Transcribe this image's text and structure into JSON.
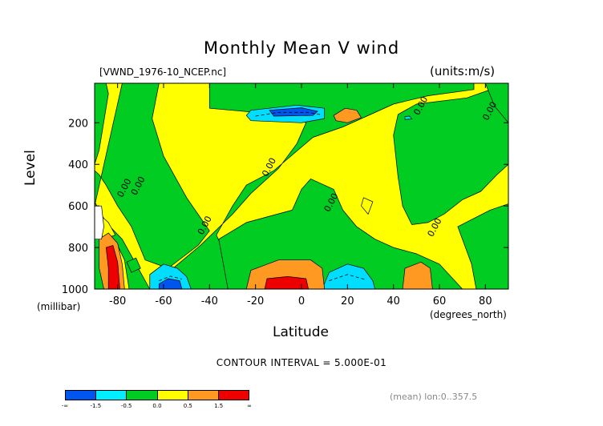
{
  "chart_data": {
    "type": "heatmap",
    "title": "Monthly Mean V wind",
    "file_label": "[VWND_1976-10_NCEP.nc]",
    "units_label": "(units:m/s)",
    "xlabel": "Latitude",
    "x_unit_label": "(degrees_north)",
    "ylabel": "Level",
    "y_unit_label": "(millibar)",
    "xlim": [
      -90,
      90
    ],
    "ylim": [
      1000,
      10
    ],
    "x_ticks": [
      -80,
      -60,
      -40,
      -20,
      0,
      20,
      40,
      60,
      80
    ],
    "x_tick_labels": [
      "-80",
      "-60",
      "-40",
      "-20",
      "0",
      "20",
      "40",
      "60",
      "80"
    ],
    "y_ticks": [
      200,
      400,
      600,
      800,
      1000
    ],
    "y_tick_labels": [
      "200",
      "400",
      "600",
      "800",
      "1000"
    ],
    "contour_interval_label": "CONTOUR INTERVAL = 5.000E-01",
    "mean_label": "(mean) lon:0..357.5",
    "contour_labels": [
      {
        "text": "0.00",
        "lat": -76,
        "level": 520
      },
      {
        "text": "0.00",
        "lat": -70,
        "level": 510
      },
      {
        "text": "0.00",
        "lat": -41,
        "level": 700
      },
      {
        "text": "0.00",
        "lat": -13,
        "level": 420
      },
      {
        "text": "0.00",
        "lat": 14,
        "level": 590
      },
      {
        "text": "0.00",
        "lat": 59,
        "level": 710
      },
      {
        "text": "0.00",
        "lat": 53,
        "level": 125
      },
      {
        "text": "0.00",
        "lat": 83,
        "level": 150
      }
    ],
    "levels": [
      {
        "label": "-∞",
        "color": "#0055ee"
      },
      {
        "label": "-1.5",
        "color": "#00eeff"
      },
      {
        "label": "-0.5",
        "color": "#00cc22"
      },
      {
        "label": "0.0",
        "color": "#ffff00"
      },
      {
        "label": "0.5",
        "color": "#ff9922"
      },
      {
        "label": "1.5",
        "color": "#ee0000"
      },
      {
        "label": "∞",
        "color": ""
      }
    ],
    "regions": [
      {
        "color": "#00cc22",
        "pts": [
          [
            -90,
            10
          ],
          [
            -85,
            10
          ],
          [
            -84,
            60
          ],
          [
            -88,
            330
          ],
          [
            -90,
            400
          ]
        ]
      },
      {
        "color": "#00cc22",
        "pts": [
          [
            -78,
            10
          ],
          [
            -62,
            10
          ],
          [
            -65,
            180
          ],
          [
            -60,
            360
          ],
          [
            -50,
            560
          ],
          [
            -40,
            720
          ],
          [
            -45,
            790
          ],
          [
            -58,
            900
          ],
          [
            -68,
            860
          ],
          [
            -74,
            700
          ],
          [
            -80,
            600
          ],
          [
            -85,
            500
          ],
          [
            -88,
            450
          ],
          [
            -90,
            430
          ],
          [
            -90,
            580
          ],
          [
            -85,
            680
          ],
          [
            -78,
            760
          ],
          [
            -72,
            880
          ],
          [
            -66,
            1000
          ],
          [
            -90,
            1000
          ],
          [
            -90,
            600
          ]
        ]
      },
      {
        "color": "#00cc22",
        "pts": [
          [
            -40,
            10
          ],
          [
            75,
            10
          ],
          [
            75,
            40
          ],
          [
            55,
            70
          ],
          [
            40,
            110
          ],
          [
            18,
            220
          ],
          [
            5,
            270
          ],
          [
            -12,
            430
          ],
          [
            -24,
            500
          ],
          [
            -30,
            600
          ],
          [
            -37,
            740
          ],
          [
            -35,
            790
          ],
          [
            -32,
            1000
          ],
          [
            -66,
            1000
          ],
          [
            -58,
            920
          ],
          [
            -44,
            790
          ],
          [
            -30,
            640
          ],
          [
            -22,
            540
          ],
          [
            -10,
            420
          ],
          [
            -2,
            300
          ],
          [
            2,
            200
          ],
          [
            -10,
            160
          ],
          [
            -40,
            130
          ]
        ]
      },
      {
        "color": "#00cc22",
        "pts": [
          [
            -36,
            760
          ],
          [
            -24,
            680
          ],
          [
            -4,
            620
          ],
          [
            0,
            520
          ],
          [
            4,
            470
          ],
          [
            14,
            520
          ],
          [
            18,
            620
          ],
          [
            24,
            700
          ],
          [
            32,
            760
          ],
          [
            40,
            800
          ],
          [
            50,
            830
          ],
          [
            60,
            880
          ],
          [
            70,
            1000
          ],
          [
            -32,
            1000
          ]
        ]
      },
      {
        "color": "#00cc22",
        "pts": [
          [
            42,
            160
          ],
          [
            50,
            110
          ],
          [
            72,
            80
          ],
          [
            90,
            10
          ],
          [
            90,
            400
          ],
          [
            85,
            450
          ],
          [
            78,
            530
          ],
          [
            70,
            570
          ],
          [
            62,
            640
          ],
          [
            55,
            680
          ],
          [
            48,
            690
          ],
          [
            44,
            600
          ],
          [
            42,
            460
          ],
          [
            40,
            260
          ]
        ]
      },
      {
        "color": "#00cc22",
        "pts": [
          [
            80,
            10
          ],
          [
            90,
            10
          ],
          [
            90,
            200
          ],
          [
            84,
            120
          ]
        ]
      },
      {
        "color": "#00cc22",
        "pts": [
          [
            68,
            700
          ],
          [
            82,
            620
          ],
          [
            90,
            590
          ],
          [
            90,
            1000
          ],
          [
            76,
            1000
          ],
          [
            74,
            880
          ]
        ]
      },
      {
        "color": "#00cc22",
        "pts": [
          [
            -76,
            870
          ],
          [
            -72,
            850
          ],
          [
            -70,
            900
          ],
          [
            -74,
            920
          ]
        ]
      },
      {
        "color": "#ffff00",
        "pts": [
          [
            -90,
            620
          ],
          [
            -84,
            680
          ],
          [
            -81,
            740
          ],
          [
            -86,
            760
          ],
          [
            -90,
            760
          ]
        ]
      },
      {
        "color": "#ffff00",
        "pts": [
          [
            -85,
            750
          ],
          [
            -80,
            790
          ],
          [
            -77,
            860
          ],
          [
            -75,
            1000
          ],
          [
            -83,
            1000
          ],
          [
            -86,
            900
          ]
        ]
      },
      {
        "color": "#ffff00",
        "pts": [
          [
            27,
            560
          ],
          [
            31,
            580
          ],
          [
            29,
            640
          ],
          [
            26,
            600
          ]
        ]
      },
      {
        "color": "#00ddff",
        "pts": [
          [
            -22,
            140
          ],
          [
            -2,
            115
          ],
          [
            10,
            130
          ],
          [
            10,
            180
          ],
          [
            0,
            200
          ],
          [
            -22,
            190
          ],
          [
            -24,
            165
          ]
        ]
      },
      {
        "color": "#0055ee",
        "pts": [
          [
            -14,
            140
          ],
          [
            0,
            128
          ],
          [
            7,
            145
          ],
          [
            5,
            165
          ],
          [
            -12,
            168
          ]
        ]
      },
      {
        "color": "#ff9922",
        "pts": [
          [
            14,
            165
          ],
          [
            19,
            130
          ],
          [
            24,
            140
          ],
          [
            26,
            175
          ],
          [
            20,
            200
          ],
          [
            15,
            190
          ]
        ]
      },
      {
        "color": "#00ddff",
        "pts": [
          [
            45,
            170
          ],
          [
            47,
            168
          ],
          [
            48,
            182
          ],
          [
            45,
            184
          ]
        ]
      },
      {
        "color": "#00ddff",
        "pts": [
          [
            -66,
            930
          ],
          [
            -60,
            880
          ],
          [
            -54,
            900
          ],
          [
            -50,
            940
          ],
          [
            -48,
            1000
          ],
          [
            -66,
            1000
          ]
        ]
      },
      {
        "color": "#0055ee",
        "pts": [
          [
            -62,
            975
          ],
          [
            -58,
            950
          ],
          [
            -53,
            960
          ],
          [
            -52,
            1000
          ],
          [
            -62,
            1000
          ]
        ]
      },
      {
        "color": "#00ddff",
        "pts": [
          [
            9,
            1000
          ],
          [
            12,
            920
          ],
          [
            20,
            880
          ],
          [
            27,
            900
          ],
          [
            31,
            960
          ],
          [
            32,
            1000
          ]
        ]
      },
      {
        "color": "#ff9922",
        "pts": [
          [
            -24,
            1000
          ],
          [
            -22,
            910
          ],
          [
            -10,
            860
          ],
          [
            4,
            860
          ],
          [
            9,
            900
          ],
          [
            10,
            1000
          ]
        ]
      },
      {
        "color": "#ee0000",
        "pts": [
          [
            -16,
            1000
          ],
          [
            -15,
            950
          ],
          [
            -6,
            940
          ],
          [
            2,
            950
          ],
          [
            3,
            1000
          ]
        ]
      },
      {
        "color": "#ff9922",
        "pts": [
          [
            -88,
            760
          ],
          [
            -84,
            730
          ],
          [
            -80,
            780
          ],
          [
            -78,
            880
          ],
          [
            -77,
            1000
          ],
          [
            -86,
            1000
          ],
          [
            -88,
            900
          ]
        ]
      },
      {
        "color": "#ee0000",
        "pts": [
          [
            -85,
            800
          ],
          [
            -82,
            790
          ],
          [
            -80,
            870
          ],
          [
            -79,
            1000
          ],
          [
            -84,
            1000
          ],
          [
            -84,
            900
          ]
        ]
      },
      {
        "color": "#ff9922",
        "pts": [
          [
            44,
            1000
          ],
          [
            45,
            900
          ],
          [
            52,
            870
          ],
          [
            56,
            900
          ],
          [
            57,
            1000
          ]
        ]
      },
      {
        "color": "#ffffff",
        "pts": [
          [
            -90,
            600
          ],
          [
            -87,
            600
          ],
          [
            -86,
            700
          ],
          [
            -87,
            760
          ],
          [
            -90,
            760
          ]
        ]
      }
    ],
    "dashed_contours": [
      [
        [
          -20,
          168
        ],
        [
          -10,
          150
        ],
        [
          3,
          150
        ],
        [
          9,
          162
        ]
      ],
      [
        [
          -62,
          960
        ],
        [
          -57,
          938
        ],
        [
          -52,
          952
        ]
      ],
      [
        [
          12,
          960
        ],
        [
          20,
          930
        ],
        [
          28,
          955
        ]
      ]
    ],
    "grid": false,
    "legend": "bottom"
  }
}
